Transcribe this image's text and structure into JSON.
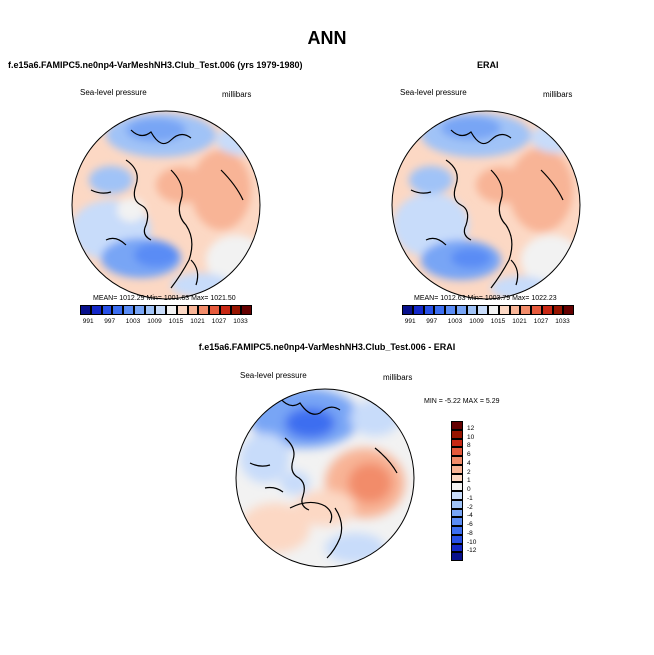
{
  "title": "ANN",
  "panels": [
    {
      "id": "test",
      "title": "f.e15a6.FAMIPC5.ne0np4-VarMeshNH3.Club_Test.006 (yrs 1979-1980)",
      "variable": "Sea-level pressure",
      "units": "millibars",
      "stats": "MEAN= 1012.29  Min= 1001.63  Max= 1021.50",
      "colorbar_ticks": [
        "991",
        "997",
        "1003",
        "1009",
        "1015",
        "1021",
        "1027",
        "1033"
      ]
    },
    {
      "id": "obs",
      "title": "ERAI",
      "variable": "Sea-level pressure",
      "units": "millibars",
      "stats": "MEAN= 1012.63  Min= 1003.79  Max= 1022.23",
      "colorbar_ticks": [
        "991",
        "997",
        "1003",
        "1009",
        "1015",
        "1021",
        "1027",
        "1033"
      ]
    },
    {
      "id": "diff",
      "title": "f.e15a6.FAMIPC5.ne0np4-VarMeshNH3.Club_Test.006 - ERAI",
      "variable": "Sea-level pressure",
      "units": "millibars",
      "stats": "MIN =  -5.22 MAX =   5.29",
      "colorbar_ticks": [
        "12",
        "10",
        "8",
        "6",
        "4",
        "2",
        "1",
        "0",
        "-1",
        "-2",
        "-4",
        "-6",
        "-8",
        "-10",
        "-12"
      ]
    }
  ],
  "chart_data": [
    {
      "type": "heatmap",
      "projection": "north-polar-stereographic",
      "title": "f.e15a6.FAMIPC5.ne0np4-VarMeshNH3.Club_Test.006 (yrs 1979-1980)",
      "field": "Sea-level pressure",
      "units": "millibars",
      "mean": 1012.29,
      "min": 1001.63,
      "max": 1021.5,
      "levels": [
        991,
        994,
        997,
        1000,
        1003,
        1006,
        1009,
        1012,
        1015,
        1018,
        1021,
        1024,
        1027,
        1030,
        1033
      ],
      "colors": [
        "#08108c",
        "#1428c8",
        "#2850e6",
        "#3c6ef0",
        "#5a8cf5",
        "#78a5f5",
        "#a0c3f7",
        "#c8dcfa",
        "#f2f2f2",
        "#fcd8c4",
        "#f8b496",
        "#f28c6a",
        "#e65a3c",
        "#c82814",
        "#961400",
        "#640000"
      ]
    },
    {
      "type": "heatmap",
      "projection": "north-polar-stereographic",
      "title": "ERAI",
      "field": "Sea-level pressure",
      "units": "millibars",
      "mean": 1012.63,
      "min": 1003.79,
      "max": 1022.23,
      "levels": [
        991,
        994,
        997,
        1000,
        1003,
        1006,
        1009,
        1012,
        1015,
        1018,
        1021,
        1024,
        1027,
        1030,
        1033
      ],
      "colors": [
        "#08108c",
        "#1428c8",
        "#2850e6",
        "#3c6ef0",
        "#5a8cf5",
        "#78a5f5",
        "#a0c3f7",
        "#c8dcfa",
        "#f2f2f2",
        "#fcd8c4",
        "#f8b496",
        "#f28c6a",
        "#e65a3c",
        "#c82814",
        "#961400",
        "#640000"
      ]
    },
    {
      "type": "heatmap",
      "projection": "north-polar-stereographic",
      "title": "f.e15a6.FAMIPC5.ne0np4-VarMeshNH3.Club_Test.006 - ERAI",
      "field": "Sea-level pressure",
      "units": "millibars",
      "min": -5.22,
      "max": 5.29,
      "levels": [
        -12,
        -10,
        -8,
        -6,
        -4,
        -2,
        -1,
        0,
        1,
        2,
        4,
        6,
        8,
        10,
        12
      ],
      "colors": [
        "#08108c",
        "#1428c8",
        "#2850e6",
        "#3c6ef0",
        "#5a8cf5",
        "#78a5f5",
        "#a0c3f7",
        "#c8dcfa",
        "#f2f2f2",
        "#fcd8c4",
        "#f8b496",
        "#f28c6a",
        "#e65a3c",
        "#c82814",
        "#961400",
        "#640000"
      ]
    }
  ]
}
